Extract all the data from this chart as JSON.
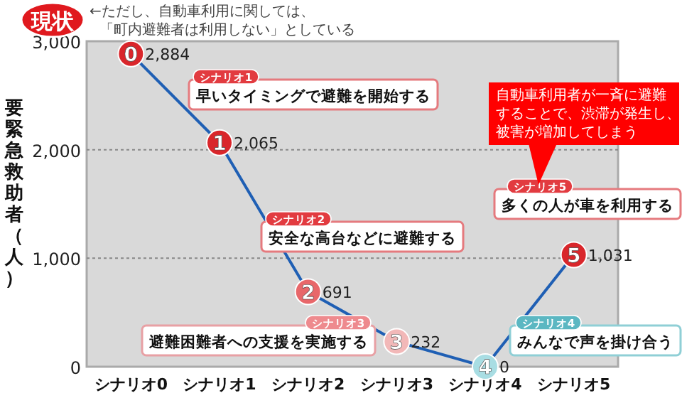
{
  "chart_data": {
    "type": "line",
    "ylabel": "要緊急救助者（人）",
    "categories": [
      "シナリオ0",
      "シナリオ1",
      "シナリオ2",
      "シナリオ3",
      "シナリオ4",
      "シナリオ5"
    ],
    "series": [
      {
        "color": "#1f5fb4",
        "colors": [
          "#d9262b",
          "#d9262b",
          "#e8676a",
          "#f2b8b8",
          "#a8dde3",
          "#d9262b"
        ],
        "values": [
          2884,
          2065,
          691,
          232,
          0,
          1031
        ],
        "value_labels": [
          "2,884",
          "2,065",
          "691",
          "232",
          "0",
          "1,031"
        ]
      }
    ],
    "ylim": [
      0,
      3000
    ],
    "yticks": [
      {
        "value": 0,
        "label": "0"
      },
      {
        "value": 1000,
        "label": "1,000"
      },
      {
        "value": 2000,
        "label": "2,000"
      },
      {
        "value": 3000,
        "label": "3,000"
      }
    ],
    "grid": "y",
    "marker": "circle",
    "line_style": "solid",
    "annotations": [
      "現状",
      "←ただし、自動車利用に関しては、",
      "「町内避難者は利用しない」としている",
      "シナリオ1",
      "早いタイミングで避難を開始する",
      "シナリオ2",
      "安全な高台などに避難する",
      "シナリオ3",
      "避難困難者への支援を実施する",
      "シナリオ4",
      "みんなで声を掛け合う",
      "シナリオ5",
      "多くの人が車を利用する",
      "自動車利用者が一斉に避難",
      "することで、渋滞が発生し、",
      "被害が増加してしまう",
      {
        "text": "0",
        "x": "シナリオ0",
        "y": 2884
      },
      {
        "text": "1",
        "x": "シナリオ1",
        "y": 2065
      },
      {
        "text": "2",
        "x": "シナリオ2",
        "y": 691
      },
      {
        "text": "3",
        "x": "シナリオ3",
        "y": 232
      },
      {
        "text": "4",
        "x": "シナリオ4",
        "y": 0
      },
      {
        "text": "5",
        "x": "シナリオ5",
        "y": 1031
      }
    ]
  }
}
